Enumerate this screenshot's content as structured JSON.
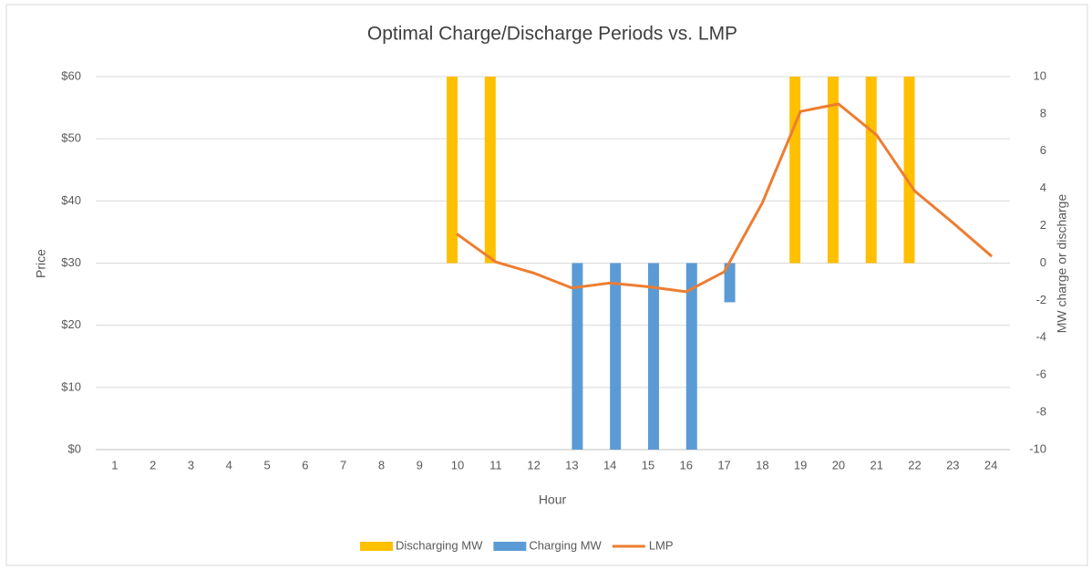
{
  "chart_data": {
    "type": "bar",
    "title": "Optimal Charge/Discharge Periods vs. LMP",
    "x_label": "Hour",
    "y_label": "Price",
    "y2_label": "MW charge or discharge",
    "categories": [
      "1",
      "2",
      "3",
      "4",
      "5",
      "6",
      "7",
      "8",
      "9",
      "10",
      "11",
      "12",
      "13",
      "14",
      "15",
      "16",
      "17",
      "18",
      "19",
      "20",
      "21",
      "22",
      "23",
      "24"
    ],
    "series": [
      {
        "name": "Discharging MW",
        "type": "bar",
        "axis": "y2",
        "color": "#ffc000",
        "values": [
          null,
          null,
          null,
          null,
          null,
          null,
          null,
          null,
          null,
          10,
          10,
          null,
          null,
          null,
          null,
          null,
          null,
          null,
          10,
          10,
          10,
          10,
          null,
          null
        ]
      },
      {
        "name": "Charging MW",
        "type": "bar",
        "axis": "y2",
        "color": "#5b9bd5",
        "values": [
          null,
          null,
          null,
          null,
          null,
          null,
          null,
          null,
          null,
          null,
          null,
          null,
          -10,
          -10,
          -10,
          -10,
          -2.1,
          null,
          null,
          null,
          null,
          null,
          null,
          null
        ]
      },
      {
        "name": "LMP",
        "type": "line",
        "axis": "y",
        "color": "#ed7d31",
        "values": [
          null,
          null,
          null,
          null,
          null,
          null,
          null,
          null,
          null,
          34.6,
          30.2,
          28.4,
          26,
          26.8,
          26.2,
          25.4,
          28.6,
          39.7,
          54.4,
          55.6,
          50.6,
          41.6,
          36.5,
          31.2
        ]
      }
    ],
    "ylim": [
      0,
      60
    ],
    "yticks": [
      {
        "value": 0,
        "label": "$0"
      },
      {
        "value": 10,
        "label": "$10"
      },
      {
        "value": 20,
        "label": "$20"
      },
      {
        "value": 30,
        "label": "$30"
      },
      {
        "value": 40,
        "label": "$40"
      },
      {
        "value": 50,
        "label": "$50"
      },
      {
        "value": 60,
        "label": "$60"
      }
    ],
    "y2lim": [
      -10,
      10
    ],
    "y2ticks": [
      -10,
      -8,
      -6,
      -4,
      -2,
      0,
      2,
      4,
      6,
      8,
      10
    ],
    "grid": true,
    "legend": "bottom"
  }
}
